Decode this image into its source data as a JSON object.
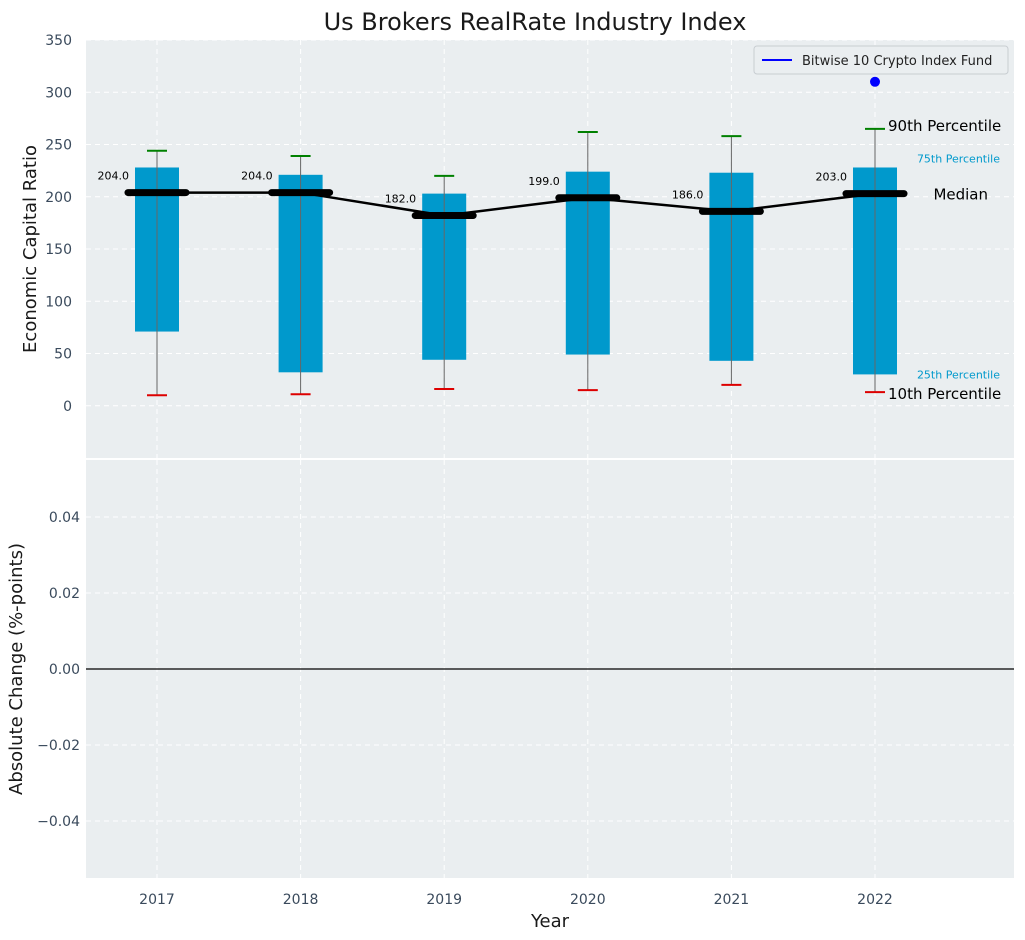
{
  "chart_data": [
    {
      "type": "box",
      "title": "Us Brokers RealRate Industry Index",
      "ylabel": "Economic Capital Ratio",
      "ylim": [
        -50,
        350
      ],
      "yticks": [
        0,
        50,
        100,
        150,
        200,
        250,
        300,
        350
      ],
      "categories": [
        "2017",
        "2018",
        "2019",
        "2020",
        "2021",
        "2022"
      ],
      "boxes": [
        {
          "year": "2017",
          "p10": 10,
          "p25": 71,
          "median": 204,
          "p75": 228,
          "p90": 244,
          "median_label": "204.0"
        },
        {
          "year": "2018",
          "p10": 11,
          "p25": 32,
          "median": 204,
          "p75": 221,
          "p90": 239,
          "median_label": "204.0"
        },
        {
          "year": "2019",
          "p10": 16,
          "p25": 44,
          "median": 182,
          "p75": 203,
          "p90": 220,
          "median_label": "182.0"
        },
        {
          "year": "2020",
          "p10": 15,
          "p25": 49,
          "median": 199,
          "p75": 224,
          "p90": 262,
          "median_label": "199.0"
        },
        {
          "year": "2021",
          "p10": 20,
          "p25": 43,
          "median": 186,
          "p75": 223,
          "p90": 258,
          "median_label": "186.0"
        },
        {
          "year": "2022",
          "p10": 13,
          "p25": 30,
          "median": 203,
          "p75": 228,
          "p90": 265,
          "median_label": "203.0"
        }
      ],
      "series": [
        {
          "name": "Bitwise 10 Crypto Index Fund",
          "points": [
            {
              "year": "2022",
              "value": 310
            }
          ]
        }
      ],
      "percentile_labels": {
        "p90": "90th Percentile",
        "p75": "75th Percentile",
        "median": "Median",
        "p25": "25th Percentile",
        "p10": "10th Percentile"
      },
      "legend_position": "top-right",
      "grid": true,
      "colors": {
        "box": "#0099cc",
        "median": "#000000",
        "whisker_top": "#008000",
        "whisker_bottom": "#dd0000",
        "fund": "#0000ff",
        "background": "#eaeef0",
        "grid": "#ffffff"
      }
    },
    {
      "type": "line",
      "ylabel": "Absolute Change (%-points)",
      "xlabel": "Year",
      "ylim": [
        -0.055,
        0.055
      ],
      "yticks": [
        "−0.04",
        "−0.02",
        "0.00",
        "0.02",
        "0.04"
      ],
      "ytick_values": [
        -0.04,
        -0.02,
        0.0,
        0.02,
        0.04
      ],
      "categories": [
        "2017",
        "2018",
        "2019",
        "2020",
        "2021",
        "2022"
      ],
      "zero_line": true,
      "grid": true
    }
  ]
}
